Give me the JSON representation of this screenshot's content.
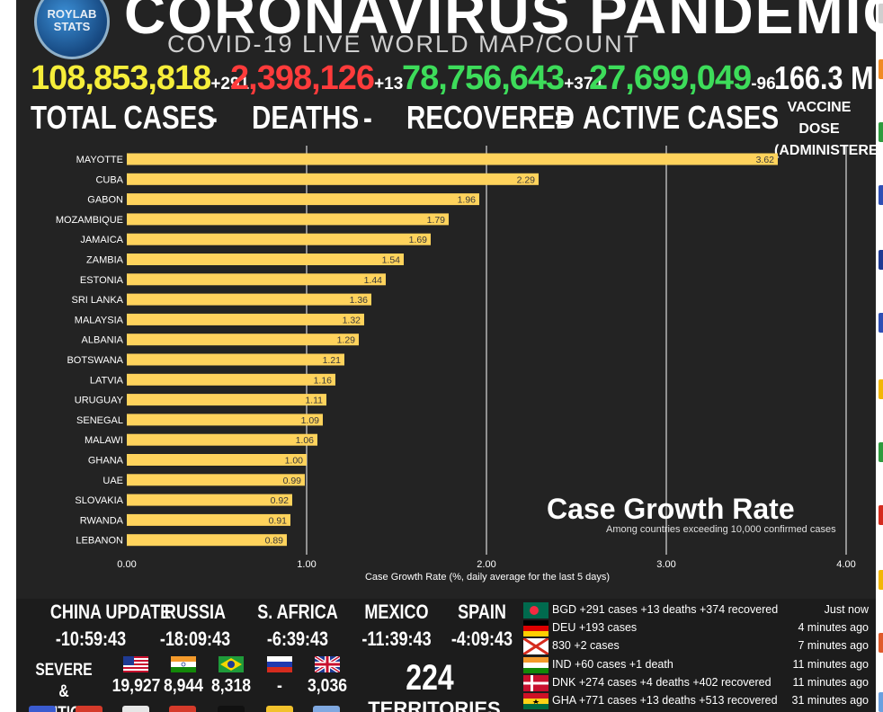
{
  "header": {
    "logo_top": "ROYLAB",
    "logo_bottom": "STATS",
    "title": "CORONAVIRUS PANDEMIC",
    "subtitle": "COVID-19 LIVE WORLD MAP/COUNT"
  },
  "stats": {
    "total_cases": "108,853,818",
    "total_cases_delta": "+291",
    "total_cases_label": "TOTAL CASES",
    "deaths": "2,398,126",
    "deaths_delta": "+13",
    "deaths_label": "DEATHS",
    "recovered": "78,756,643",
    "recovered_delta": "+374",
    "recovered_label": "RECOVERED",
    "active": "27,699,049",
    "active_delta": "-96",
    "active_label": "ACTIVE CASES",
    "minus1": "-",
    "minus2": "-",
    "equals": "=",
    "vaccine_value": "166.3 M",
    "vaccine_label1": "VACCINE DOSE",
    "vaccine_label2": "(ADMINISTERED)",
    "colors": {
      "total": "#f6ee3a",
      "deaths": "#ff3b3b",
      "recovered": "#3ddc5a",
      "active": "#3ddc5a"
    }
  },
  "chart_data": {
    "type": "bar",
    "orientation": "horizontal",
    "title": "Case Growth Rate",
    "subtitle": "Among countries exceeding 10,000 confirmed cases",
    "xlabel": "Case Growth Rate (%, daily average for the last 5 days)",
    "xlim": [
      0,
      4
    ],
    "xticks": [
      "0.00",
      "1.00",
      "2.00",
      "3.00",
      "4.00"
    ],
    "grid": true,
    "bar_color": "#ffd35c",
    "categories": [
      "MAYOTTE",
      "CUBA",
      "GABON",
      "MOZAMBIQUE",
      "JAMAICA",
      "ZAMBIA",
      "ESTONIA",
      "SRI LANKA",
      "MALAYSIA",
      "ALBANIA",
      "BOTSWANA",
      "LATVIA",
      "URUGUAY",
      "SENEGAL",
      "MALAWI",
      "GHANA",
      "UAE",
      "SLOVAKIA",
      "RWANDA",
      "LEBANON"
    ],
    "values": [
      3.62,
      2.29,
      1.96,
      1.79,
      1.69,
      1.54,
      1.44,
      1.36,
      1.32,
      1.29,
      1.21,
      1.16,
      1.11,
      1.09,
      1.06,
      1.0,
      0.99,
      0.92,
      0.91,
      0.89
    ],
    "value_labels": [
      "3.62",
      "2.29",
      "1.96",
      "1.79",
      "1.69",
      "1.54",
      "1.44",
      "1.36",
      "1.32",
      "1.29",
      "1.21",
      "1.16",
      "1.11",
      "1.09",
      "1.06",
      "1.00",
      "0.99",
      "0.92",
      "0.91",
      "0.89"
    ]
  },
  "timezones": [
    {
      "name": "CHINA UPDATE",
      "time": "-10:59:43"
    },
    {
      "name": "RUSSIA",
      "time": "-18:09:43"
    },
    {
      "name": "S. AFRICA",
      "time": "-6:39:43"
    },
    {
      "name": "MEXICO",
      "time": "-11:39:43"
    },
    {
      "name": "SPAIN",
      "time": "-4:09:43"
    }
  ],
  "severe": {
    "label1": "SEVERE &",
    "label2": "CRITICAL",
    "items": [
      {
        "flag": "usa-flag-icon",
        "value": "19,927"
      },
      {
        "flag": "india-flag-icon",
        "value": "8,944"
      },
      {
        "flag": "brazil-flag-icon",
        "value": "8,318"
      },
      {
        "flag": "russia-flag-icon",
        "value": "-"
      },
      {
        "flag": "uk-flag-icon",
        "value": "3,036"
      }
    ]
  },
  "territories": {
    "count": "224",
    "label": "TERRITORIES"
  },
  "feed": [
    {
      "flag": "bangladesh-flag-icon",
      "text": "BGD +291 cases +13 deaths +374 recovered",
      "when": "Just now"
    },
    {
      "flag": "germany-flag-icon",
      "text": "DEU +193 cases",
      "when": "4 minutes ago"
    },
    {
      "flag": "jersey-flag-icon",
      "text": "830 +2 cases",
      "when": "7 minutes ago"
    },
    {
      "flag": "india-flag-icon",
      "text": "IND +60 cases +1 death",
      "when": "11 minutes ago"
    },
    {
      "flag": "denmark-flag-icon",
      "text": "DNK +274 cases +4 deaths +402 recovered",
      "when": "11 minutes ago"
    },
    {
      "flag": "ghana-flag-icon",
      "text": "GHA +771 cases +13 deaths +513 recovered",
      "when": "31 minutes ago"
    }
  ]
}
